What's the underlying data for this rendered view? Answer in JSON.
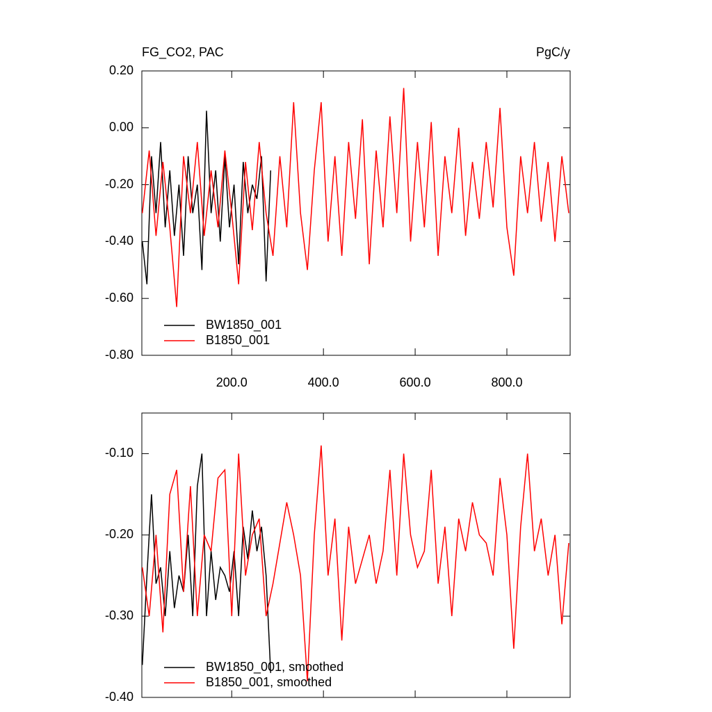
{
  "chart_data": [
    {
      "type": "line",
      "title": "FG_CO2, PAC",
      "units": "PgC/y",
      "legend": "lower left",
      "xlim": [
        4,
        938
      ],
      "ylim": [
        -0.8,
        0.2
      ],
      "xticks": [
        {
          "value": 200,
          "label": "200.0"
        },
        {
          "value": 400,
          "label": "400.0"
        },
        {
          "value": 600,
          "label": "600.0"
        },
        {
          "value": 800,
          "label": "800.0"
        }
      ],
      "yticks": [
        {
          "value": 0.2,
          "label": "0.20"
        },
        {
          "value": 0,
          "label": "0.00"
        },
        {
          "value": -0.2,
          "label": "-0.20"
        },
        {
          "value": -0.4,
          "label": "-0.40"
        },
        {
          "value": -0.6,
          "label": "-0.60"
        },
        {
          "value": -0.8,
          "label": "-0.80"
        }
      ],
      "series": [
        {
          "name": "BW1850_001",
          "color": "#000000",
          "x": [
            5,
            15,
            25,
            35,
            45,
            55,
            65,
            75,
            85,
            95,
            105,
            115,
            125,
            135,
            145,
            155,
            165,
            175,
            185,
            195,
            205,
            215,
            225,
            235,
            245,
            255,
            265,
            275,
            285
          ],
          "values": [
            -0.4,
            -0.55,
            -0.1,
            -0.3,
            -0.05,
            -0.35,
            -0.15,
            -0.38,
            -0.2,
            -0.45,
            -0.1,
            -0.3,
            -0.2,
            -0.5,
            0.06,
            -0.3,
            -0.15,
            -0.4,
            -0.1,
            -0.35,
            -0.2,
            -0.48,
            -0.12,
            -0.3,
            -0.2,
            -0.25,
            -0.1,
            -0.54,
            -0.15
          ]
        },
        {
          "name": "B1850_001",
          "color": "#ff0000",
          "x": [
            5,
            20,
            35,
            50,
            65,
            80,
            95,
            110,
            125,
            140,
            155,
            170,
            185,
            200,
            215,
            230,
            245,
            260,
            275,
            290,
            305,
            320,
            335,
            350,
            365,
            380,
            395,
            410,
            425,
            440,
            455,
            470,
            485,
            500,
            515,
            530,
            545,
            560,
            575,
            590,
            605,
            620,
            635,
            650,
            665,
            680,
            695,
            710,
            725,
            740,
            755,
            770,
            785,
            800,
            815,
            830,
            845,
            860,
            875,
            890,
            905,
            920,
            935
          ],
          "values": [
            -0.3,
            -0.08,
            -0.38,
            -0.12,
            -0.35,
            -0.63,
            -0.1,
            -0.3,
            -0.05,
            -0.38,
            -0.15,
            -0.35,
            -0.08,
            -0.3,
            -0.55,
            -0.12,
            -0.36,
            -0.05,
            -0.3,
            -0.45,
            -0.1,
            -0.35,
            0.09,
            -0.3,
            -0.5,
            -0.15,
            0.09,
            -0.4,
            -0.1,
            -0.45,
            -0.05,
            -0.32,
            0.03,
            -0.48,
            -0.08,
            -0.35,
            0.04,
            -0.3,
            0.14,
            -0.4,
            -0.05,
            -0.35,
            0.02,
            -0.45,
            -0.1,
            -0.3,
            0.0,
            -0.38,
            -0.12,
            -0.32,
            -0.05,
            -0.28,
            0.07,
            -0.35,
            -0.52,
            -0.1,
            -0.3,
            -0.05,
            -0.33,
            -0.12,
            -0.4,
            -0.1,
            -0.3
          ]
        }
      ]
    },
    {
      "type": "line",
      "legend": "lower left",
      "xlim": [
        4,
        938
      ],
      "ylim": [
        -0.4,
        -0.05
      ],
      "xticks": [
        200,
        400,
        600,
        800
      ],
      "yticks": [
        {
          "value": -0.1,
          "label": "-0.10"
        },
        {
          "value": -0.2,
          "label": "-0.20"
        },
        {
          "value": -0.3,
          "label": "-0.30"
        },
        {
          "value": -0.4,
          "label": "-0.40"
        }
      ],
      "series": [
        {
          "name": "BW1850_001, smoothed",
          "color": "#000000",
          "x": [
            5,
            15,
            25,
            35,
            45,
            55,
            65,
            75,
            85,
            95,
            105,
            115,
            125,
            135,
            145,
            155,
            165,
            175,
            185,
            195,
            205,
            215,
            225,
            235,
            245,
            255,
            265,
            275,
            285
          ],
          "values": [
            -0.36,
            -0.25,
            -0.15,
            -0.26,
            -0.24,
            -0.3,
            -0.22,
            -0.29,
            -0.25,
            -0.27,
            -0.2,
            -0.3,
            -0.14,
            -0.1,
            -0.3,
            -0.22,
            -0.28,
            -0.24,
            -0.25,
            -0.27,
            -0.22,
            -0.3,
            -0.19,
            -0.23,
            -0.17,
            -0.22,
            -0.19,
            -0.25,
            -0.37
          ]
        },
        {
          "name": "B1850_001, smoothed",
          "color": "#ff0000",
          "x": [
            5,
            20,
            35,
            50,
            65,
            80,
            95,
            110,
            125,
            140,
            155,
            170,
            185,
            200,
            215,
            230,
            245,
            260,
            275,
            290,
            305,
            320,
            335,
            350,
            365,
            380,
            395,
            410,
            425,
            440,
            455,
            470,
            485,
            500,
            515,
            530,
            545,
            560,
            575,
            590,
            605,
            620,
            635,
            650,
            665,
            680,
            695,
            710,
            725,
            740,
            755,
            770,
            785,
            800,
            815,
            830,
            845,
            860,
            875,
            890,
            905,
            920,
            935
          ],
          "values": [
            -0.24,
            -0.3,
            -0.2,
            -0.32,
            -0.15,
            -0.12,
            -0.27,
            -0.14,
            -0.3,
            -0.2,
            -0.22,
            -0.13,
            -0.12,
            -0.3,
            -0.1,
            -0.25,
            -0.2,
            -0.18,
            -0.3,
            -0.26,
            -0.21,
            -0.16,
            -0.2,
            -0.25,
            -0.38,
            -0.2,
            -0.09,
            -0.25,
            -0.18,
            -0.33,
            -0.19,
            -0.26,
            -0.23,
            -0.2,
            -0.26,
            -0.22,
            -0.12,
            -0.25,
            -0.1,
            -0.2,
            -0.24,
            -0.22,
            -0.12,
            -0.26,
            -0.19,
            -0.3,
            -0.18,
            -0.22,
            -0.16,
            -0.2,
            -0.21,
            -0.25,
            -0.13,
            -0.2,
            -0.34,
            -0.19,
            -0.1,
            -0.22,
            -0.18,
            -0.25,
            -0.2,
            -0.31,
            -0.21
          ]
        }
      ]
    }
  ]
}
